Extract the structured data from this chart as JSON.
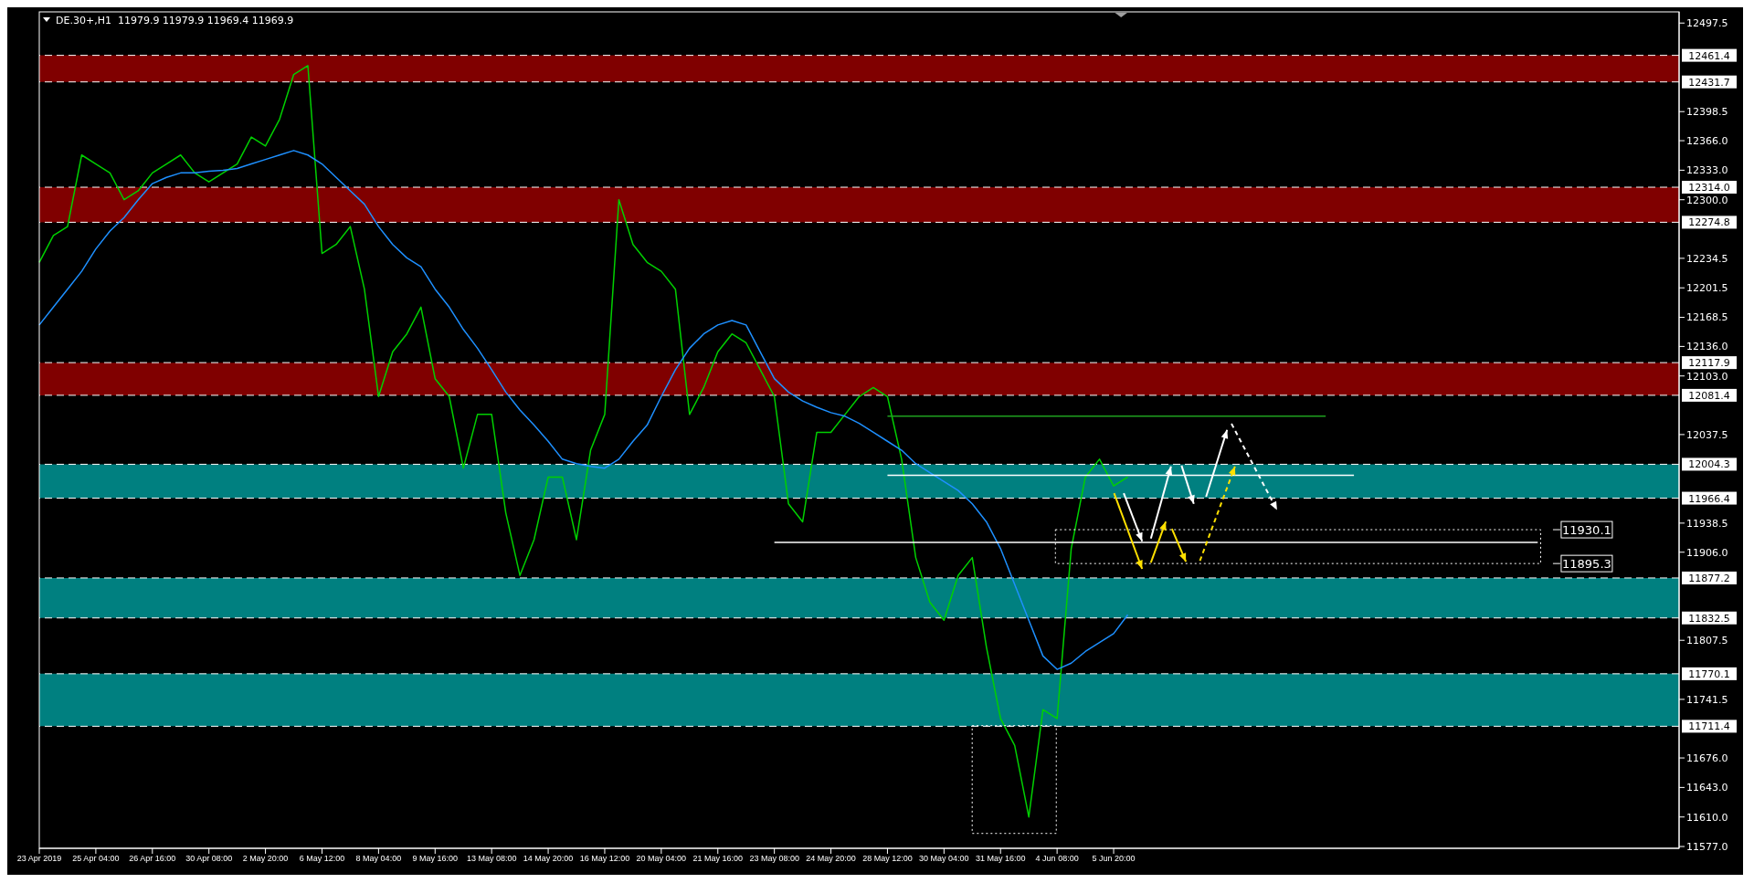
{
  "chart_data": {
    "type": "line",
    "title": "DE.30+,H1  11979.9 11979.9 11969.4 11969.9",
    "categories": [
      "23 Apr 2019",
      null,
      null,
      null,
      "25 Apr 04:00",
      null,
      null,
      null,
      "26 Apr 16:00",
      null,
      null,
      null,
      "30 Apr 08:00",
      null,
      null,
      null,
      "2 May 20:00",
      null,
      null,
      null,
      "6 May 12:00",
      null,
      null,
      null,
      "8 May 04:00",
      null,
      null,
      null,
      "9 May 16:00",
      null,
      null,
      null,
      "13 May 08:00",
      null,
      null,
      null,
      "14 May 20:00",
      null,
      null,
      null,
      "16 May 12:00",
      null,
      null,
      null,
      "20 May 04:00",
      null,
      null,
      null,
      "21 May 16:00",
      null,
      null,
      null,
      "23 May 08:00",
      null,
      null,
      null,
      "24 May 20:00",
      null,
      null,
      null,
      "28 May 12:00",
      null,
      null,
      null,
      "30 May 04:00",
      null,
      null,
      null,
      "31 May 16:00",
      null,
      null,
      null,
      "4 Jun 08:00",
      null,
      null,
      null,
      "5 Jun 20:00",
      null,
      null,
      null,
      null,
      null,
      null,
      null,
      null,
      null,
      null,
      null,
      null,
      null,
      null,
      null,
      null,
      null,
      null,
      null,
      null,
      null,
      null,
      null,
      null,
      null,
      null,
      null,
      null,
      null,
      null,
      null,
      null,
      null,
      null,
      null,
      null,
      null,
      null,
      null,
      null
    ],
    "series": [
      {
        "color": "#00d000",
        "values": [
          12230,
          12260,
          12270,
          12350,
          12340,
          12330,
          12300,
          12310,
          12330,
          12340,
          12350,
          12330,
          12320,
          12330,
          12340,
          12370,
          12360,
          12390,
          12440,
          12450,
          12240,
          12250,
          12270,
          12200,
          12080,
          12130,
          12150,
          12180,
          12100,
          12080,
          12000,
          12060,
          12060,
          11950,
          11880,
          11920,
          11990,
          11990,
          11920,
          12020,
          12060,
          12300,
          12250,
          12230,
          12220,
          12200,
          12060,
          12090,
          12130,
          12150,
          12140,
          12110,
          12080,
          11960,
          11940,
          12040,
          12040,
          12060,
          12080,
          12090,
          12080,
          12010,
          11900,
          11850,
          11830,
          11880,
          11900,
          11800,
          11720,
          11690,
          11610,
          11730,
          11720,
          11910,
          11990,
          12010,
          11980,
          11990,
          null,
          null,
          null,
          null,
          null,
          null,
          null,
          null,
          null,
          null,
          null,
          null,
          null,
          null,
          null,
          null,
          null,
          null,
          null,
          null,
          null,
          null,
          null,
          null,
          null,
          null,
          null,
          null,
          null,
          null,
          null,
          null,
          null,
          null,
          null,
          null,
          null,
          null,
          null
        ]
      },
      {
        "color": "#1e90ff",
        "values": [
          12160,
          12180,
          12200,
          12220,
          12245,
          12265,
          12280,
          12300,
          12318,
          12325,
          12330,
          12330,
          12332,
          12333,
          12335,
          12340,
          12345,
          12350,
          12355,
          12350,
          12340,
          12325,
          12310,
          12295,
          12270,
          12250,
          12235,
          12225,
          12200,
          12180,
          12155,
          12134,
          12110,
          12085,
          12065,
          12048,
          12030,
          12010,
          12005,
          12002,
          12000,
          12010,
          12030,
          12048,
          12080,
          12110,
          12134,
          12150,
          12160,
          12165,
          12160,
          12130,
          12100,
          12085,
          12075,
          12068,
          12062,
          12058,
          12050,
          12040,
          12030,
          12020,
          12005,
          11995,
          11985,
          11975,
          11960,
          11940,
          11910,
          11870,
          11830,
          11790,
          11775,
          11782,
          11795,
          11805,
          11815,
          11836,
          null,
          null,
          null,
          null,
          null,
          null,
          null,
          null,
          null,
          null,
          null,
          null,
          null,
          null,
          null,
          null,
          null,
          null,
          null,
          null,
          null,
          null,
          null,
          null,
          null,
          null,
          null,
          null,
          null,
          null,
          null,
          null,
          null,
          null,
          null,
          null,
          null,
          null,
          null
        ]
      },
      {
        "color": "#1fa01f",
        "values": [
          null,
          null,
          null,
          null,
          null,
          null,
          null,
          null,
          null,
          null,
          null,
          null,
          null,
          null,
          null,
          null,
          null,
          null,
          null,
          null,
          null,
          null,
          null,
          null,
          null,
          null,
          null,
          null,
          null,
          null,
          null,
          null,
          null,
          null,
          null,
          null,
          null,
          null,
          null,
          null,
          null,
          null,
          null,
          null,
          null,
          null,
          null,
          null,
          null,
          null,
          null,
          null,
          null,
          null,
          null,
          null,
          null,
          null,
          null,
          null,
          12058,
          12058,
          12058,
          12058,
          12058,
          12058,
          12058,
          12058,
          12058,
          12058,
          12058,
          12058,
          12058,
          12058,
          12058,
          12058,
          12058,
          12058,
          12058,
          12058,
          12058,
          12058,
          12058,
          12058,
          12058,
          12058,
          12058,
          12058,
          12058,
          12058,
          12058,
          12058,
          null,
          null,
          null,
          null,
          null,
          null,
          null,
          null,
          null,
          null,
          null,
          null,
          null,
          null,
          null,
          null,
          null,
          null,
          null,
          null,
          null,
          null,
          null,
          null,
          null
        ]
      },
      {
        "color": "#ffffff",
        "values": [
          null,
          null,
          null,
          null,
          null,
          null,
          null,
          null,
          null,
          null,
          null,
          null,
          null,
          null,
          null,
          null,
          null,
          null,
          null,
          null,
          null,
          null,
          null,
          null,
          null,
          null,
          null,
          null,
          null,
          null,
          null,
          null,
          null,
          null,
          null,
          null,
          null,
          null,
          null,
          null,
          null,
          null,
          null,
          null,
          null,
          null,
          null,
          null,
          null,
          null,
          null,
          null,
          null,
          null,
          null,
          null,
          null,
          null,
          null,
          null,
          11992,
          11992,
          11992,
          11992,
          11992,
          11992,
          11992,
          11992,
          11992,
          11992,
          11992,
          11992,
          11992,
          11992,
          11992,
          11992,
          11992,
          11992,
          11992,
          11992,
          11992,
          11992,
          11992,
          11992,
          11992,
          11992,
          11992,
          11992,
          11992,
          11992,
          11992,
          11992,
          11992,
          11992,
          null,
          null,
          null,
          null,
          null,
          null,
          null,
          null,
          null,
          null,
          null,
          null,
          null,
          null,
          null,
          null,
          null,
          null,
          null,
          null,
          null,
          null,
          null
        ]
      },
      {
        "color": "#ffffff",
        "values": [
          null,
          null,
          null,
          null,
          null,
          null,
          null,
          null,
          null,
          null,
          null,
          null,
          null,
          null,
          null,
          null,
          null,
          null,
          null,
          null,
          null,
          null,
          null,
          null,
          null,
          null,
          null,
          null,
          null,
          null,
          null,
          null,
          null,
          null,
          null,
          null,
          null,
          null,
          null,
          null,
          null,
          null,
          null,
          null,
          null,
          null,
          null,
          null,
          null,
          null,
          null,
          null,
          11917,
          11917,
          11917,
          11917,
          11917,
          11917,
          11917,
          11917,
          11917,
          11917,
          11917,
          11917,
          11917,
          11917,
          11917,
          11917,
          11917,
          11917,
          11917,
          11917,
          11917,
          11917,
          11917,
          11917,
          11917,
          11917,
          11917,
          11917,
          11917,
          11917,
          11917,
          11917,
          11917,
          11917,
          11917,
          11917,
          11917,
          11917,
          11917,
          11917,
          11917,
          11917,
          11917,
          11917,
          11917,
          11917,
          11917,
          11917,
          11917,
          11917,
          11917,
          11917,
          11917,
          11917,
          11917,
          null,
          null,
          null,
          null,
          null,
          null,
          null,
          null,
          null,
          null
        ]
      }
    ],
    "ylim": [
      11575,
      12510
    ],
    "yticks": [
      12497.5,
      12398.5,
      {
        "value": 12366,
        "label": "12366.0"
      },
      {
        "value": 12333,
        "label": "12333.0"
      },
      {
        "value": 12300,
        "label": "12300.0"
      },
      12234.5,
      12201.5,
      12168.5,
      {
        "value": 12136,
        "label": "12136.0"
      },
      {
        "value": 12103,
        "label": "12103.0"
      },
      12037.5,
      11938.5,
      {
        "value": 11906,
        "label": "11906.0"
      },
      11807.5,
      11741.5,
      {
        "value": 11676,
        "label": "11676.0"
      },
      {
        "value": 11643,
        "label": "11643.0"
      },
      {
        "value": 11610,
        "label": "11610.0"
      },
      {
        "value": 11577,
        "label": "11577.0"
      }
    ],
    "bands": [
      {
        "axis": "y",
        "from": 12431.7,
        "to": 12461.4,
        "color": "#800000"
      },
      {
        "axis": "y",
        "from": 12274.8,
        "to": 12314.0,
        "color": "#800000"
      },
      {
        "axis": "y",
        "from": 12081.4,
        "to": 12117.9,
        "color": "#800000"
      },
      {
        "axis": "y",
        "from": 11966.4,
        "to": 12004.3,
        "color": "#008080"
      },
      {
        "axis": "y",
        "from": 11832.5,
        "to": 11877.2,
        "color": "#008080"
      },
      {
        "axis": "y",
        "from": 11711.4,
        "to": 11770.1,
        "color": "#008080"
      }
    ],
    "ref_lines": [
      {
        "axis": "y",
        "value": 12461.4,
        "label": "12461.4",
        "color": "#ffffff",
        "line_style": "dashed"
      },
      {
        "axis": "y",
        "value": 12431.7,
        "label": "12431.7",
        "color": "#ffffff",
        "line_style": "dashed"
      },
      {
        "axis": "y",
        "value": 12314.0,
        "label": "12314.0",
        "color": "#ffffff",
        "line_style": "dashed"
      },
      {
        "axis": "y",
        "value": 12274.8,
        "label": "12274.8",
        "color": "#ffffff",
        "line_style": "dashed"
      },
      {
        "axis": "y",
        "value": 12117.9,
        "label": "12117.9",
        "color": "#ffffff",
        "line_style": "dashed"
      },
      {
        "axis": "y",
        "value": 12081.4,
        "label": "12081.4",
        "color": "#ffffff",
        "line_style": "dashed"
      },
      {
        "axis": "y",
        "value": 12004.3,
        "label": "12004.3",
        "color": "#ffffff",
        "line_style": "dashed"
      },
      {
        "axis": "y",
        "value": 11966.4,
        "label": "11966.4",
        "color": "#ffffff",
        "line_style": "dashed"
      },
      {
        "axis": "y",
        "value": 11877.2,
        "label": "11877.2",
        "color": "#ffffff",
        "line_style": "dashed"
      },
      {
        "axis": "y",
        "value": 11832.5,
        "label": "11832.5",
        "color": "#ffffff",
        "line_style": "dashed"
      },
      {
        "axis": "y",
        "value": 11770.1,
        "label": "11770.1",
        "color": "#ffffff",
        "line_style": "dashed"
      },
      {
        "axis": "y",
        "value": 11711.4,
        "label": "11711.4",
        "color": "#ffffff",
        "line_style": "dashed"
      }
    ],
    "annotations": [
      "11930.1",
      "11895.3"
    ]
  }
}
